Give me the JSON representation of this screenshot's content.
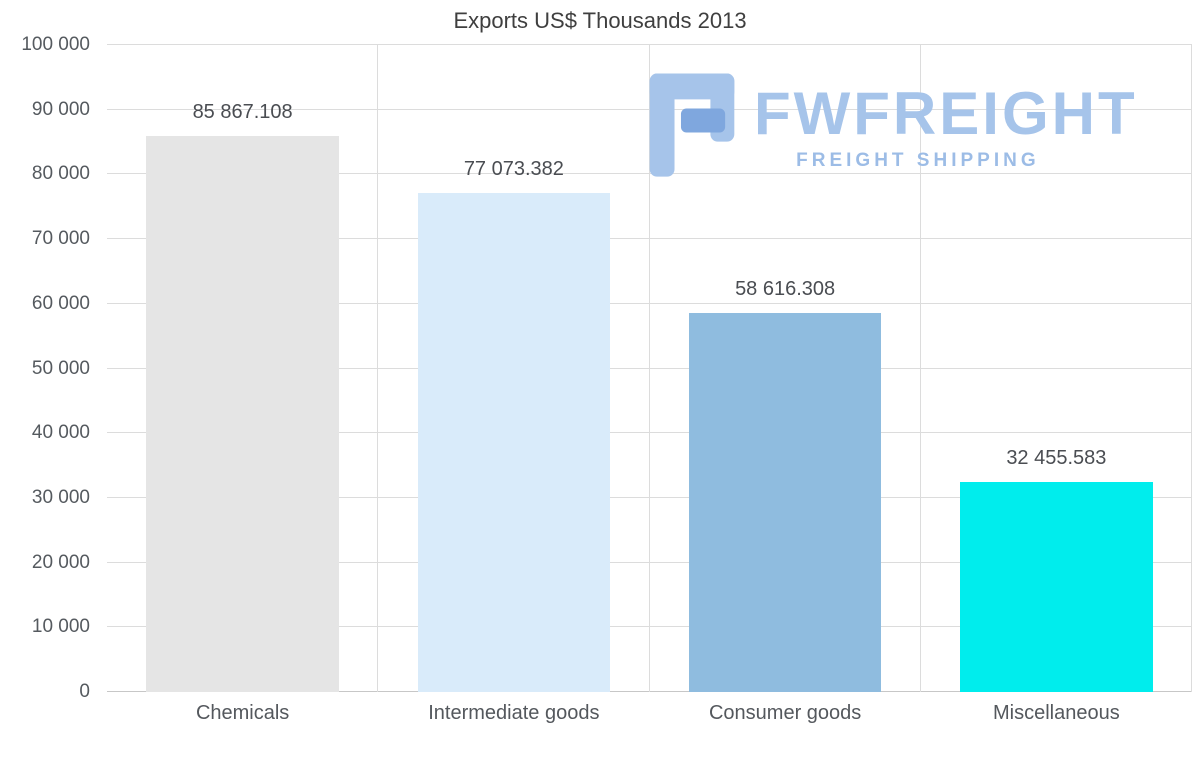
{
  "title": "Exports US$ Thousands 2013",
  "watermark": {
    "brand": "FWFREIGHT",
    "tagline": "FREIGHT SHIPPING",
    "brand_color": "#a6c4ea",
    "tagline_color": "#9cbce6",
    "icon_color_light": "#a6c4ea",
    "icon_color_dark": "#7fa7de"
  },
  "chart_data": {
    "type": "bar",
    "title": "Exports US$ Thousands 2013",
    "categories": [
      "Chemicals",
      "Intermediate goods",
      "Consumer goods",
      "Miscellaneous"
    ],
    "values": [
      85867.108,
      77073.382,
      58616.308,
      32455.583
    ],
    "value_labels": [
      "85 867.108",
      "77 073.382",
      "58 616.308",
      "32 455.583"
    ],
    "bar_colors": [
      "#e5e5e5",
      "#d9ebfa",
      "#8fbcdf",
      "#00eded"
    ],
    "xlabel": "",
    "ylabel": "",
    "ylim": [
      0,
      100000
    ],
    "ytick_step": 10000,
    "ytick_labels": [
      "0",
      "10 000",
      "20 000",
      "30 000",
      "40 000",
      "50 000",
      "60 000",
      "70 000",
      "80 000",
      "90 000",
      "100 000"
    ],
    "grid": true,
    "legend": "none"
  }
}
